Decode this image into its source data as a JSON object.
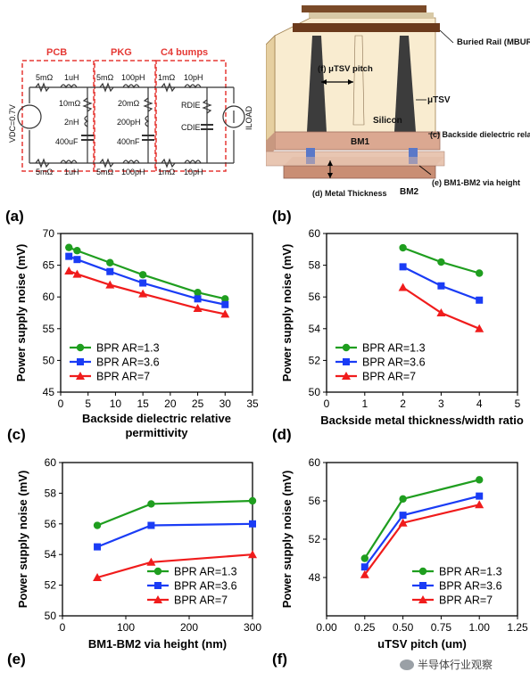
{
  "panel_a": {
    "label": "(a)",
    "sections": [
      "PCB",
      "PKG",
      "C4 bumps"
    ],
    "components": {
      "pcb_r_top": "5mΩ",
      "pcb_l_top": "1uH",
      "pcb_r_shunt": "10mΩ",
      "pcb_l_shunt": "2nH",
      "pcb_c_shunt": "400uF",
      "pcb_r_bot": "5mΩ",
      "pcb_l_bot": "1uH",
      "pkg_r_top": "5mΩ",
      "pkg_l_top": "100pH",
      "pkg_r_shunt": "20mΩ",
      "pkg_l_shunt": "200pH",
      "pkg_c_shunt": "400nF",
      "pkg_r_bot": "5mΩ",
      "pkg_l_bot": "100pH",
      "c4_r_top": "1mΩ",
      "c4_l_top": "10pH",
      "c4_r_bot": "1mΩ",
      "c4_l_bot": "10pH"
    },
    "vdc_label": "VDC=0.7V",
    "rdie": "RDIE",
    "cdie": "CDIE",
    "iload": "ILOAD"
  },
  "panel_b": {
    "label": "(b)",
    "labels": {
      "buried_rail": "Buried Rail (MBUR)",
      "utsv_pitch": "(f) μTSV pitch",
      "utsv": "μTSV",
      "silicon": "Silicon",
      "bm1": "BM1",
      "dielectric": "(c) Backside dielectric relative permittivity",
      "metal_thickness": "(d) Metal Thickness",
      "bm2": "BM2",
      "via_height": "(e) BM1-BM2 via height"
    }
  },
  "chart_data": [
    {
      "panel": "(c)",
      "type": "line",
      "xlabel": "Backside dielectric relative permittivity",
      "ylabel": "Power supply noise (mV)",
      "xlim": [
        0,
        35
      ],
      "ylim": [
        45,
        70
      ],
      "xticks": [
        0,
        5,
        10,
        15,
        20,
        25,
        30,
        35
      ],
      "yticks": [
        45,
        50,
        55,
        60,
        65,
        70
      ],
      "legend": "bottom-left",
      "series": [
        {
          "name": "BPR AR=1.3",
          "color": "#1f9e1f",
          "marker": "circle",
          "x": [
            1.5,
            3,
            9,
            15,
            25,
            30
          ],
          "y": [
            67.8,
            67.3,
            65.4,
            63.5,
            60.7,
            59.7
          ]
        },
        {
          "name": "BPR AR=3.6",
          "color": "#1a3cf5",
          "marker": "square",
          "x": [
            1.5,
            3,
            9,
            15,
            25,
            30
          ],
          "y": [
            66.4,
            65.9,
            64.0,
            62.2,
            59.7,
            58.8
          ]
        },
        {
          "name": "BPR AR=7",
          "color": "#f01c1c",
          "marker": "triangle",
          "x": [
            1.5,
            3,
            9,
            15,
            25,
            30
          ],
          "y": [
            64.1,
            63.6,
            61.9,
            60.5,
            58.2,
            57.3
          ]
        }
      ]
    },
    {
      "panel": "(d)",
      "type": "line",
      "xlabel": "Backside metal thickness/width ratio",
      "ylabel": "Power supply noise (mV)",
      "xlim": [
        0,
        5
      ],
      "ylim": [
        50,
        60
      ],
      "xticks": [
        0,
        1,
        2,
        3,
        4,
        5
      ],
      "yticks": [
        50,
        52,
        54,
        56,
        58,
        60
      ],
      "legend": "bottom-left",
      "series": [
        {
          "name": "BPR AR=1.3",
          "color": "#1f9e1f",
          "marker": "circle",
          "x": [
            2,
            3,
            4
          ],
          "y": [
            59.1,
            58.2,
            57.5
          ]
        },
        {
          "name": "BPR AR=3.6",
          "color": "#1a3cf5",
          "marker": "square",
          "x": [
            2,
            3,
            4
          ],
          "y": [
            57.9,
            56.7,
            55.8
          ]
        },
        {
          "name": "BPR AR=7",
          "color": "#f01c1c",
          "marker": "triangle",
          "x": [
            2,
            3,
            4
          ],
          "y": [
            56.6,
            55.0,
            54.0
          ]
        }
      ]
    },
    {
      "panel": "(e)",
      "type": "line",
      "xlabel": "BM1-BM2 via height (nm)",
      "ylabel": "Power supply noise (mV)",
      "xlim": [
        0,
        300
      ],
      "ylim": [
        50,
        60
      ],
      "xticks": [
        0,
        100,
        200,
        300
      ],
      "yticks": [
        50,
        52,
        54,
        56,
        58,
        60
      ],
      "legend": "bottom-right",
      "series": [
        {
          "name": "BPR AR=1.3",
          "color": "#1f9e1f",
          "marker": "circle",
          "x": [
            55,
            140,
            300
          ],
          "y": [
            55.9,
            57.3,
            57.5
          ]
        },
        {
          "name": "BPR AR=3.6",
          "color": "#1a3cf5",
          "marker": "square",
          "x": [
            55,
            140,
            300
          ],
          "y": [
            54.5,
            55.9,
            56.0
          ]
        },
        {
          "name": "BPR AR=7",
          "color": "#f01c1c",
          "marker": "triangle",
          "x": [
            55,
            140,
            300
          ],
          "y": [
            52.5,
            53.5,
            54.0
          ]
        }
      ]
    },
    {
      "panel": "(f)",
      "type": "line",
      "xlabel": "uTSV pitch (um)",
      "ylabel": "Power supply noise (mV)",
      "xlim": [
        0,
        1.25
      ],
      "ylim": [
        44,
        60
      ],
      "xticks": [
        "0.00",
        "0.25",
        "0.50",
        "0.75",
        "1.00",
        "1.25"
      ],
      "yticks": [
        48,
        52,
        56,
        60
      ],
      "legend": "bottom-right",
      "series": [
        {
          "name": "BPR AR=1.3",
          "color": "#1f9e1f",
          "marker": "circle",
          "x": [
            0.25,
            0.5,
            1.0
          ],
          "y": [
            50.0,
            56.2,
            58.2
          ]
        },
        {
          "name": "BPR AR=3.6",
          "color": "#1a3cf5",
          "marker": "square",
          "x": [
            0.25,
            0.5,
            1.0
          ],
          "y": [
            49.1,
            54.5,
            56.5
          ]
        },
        {
          "name": "BPR AR=7",
          "color": "#f01c1c",
          "marker": "triangle",
          "x": [
            0.25,
            0.5,
            1.0
          ],
          "y": [
            48.3,
            53.7,
            55.6
          ]
        }
      ]
    }
  ],
  "watermark": "半导体行业观察"
}
